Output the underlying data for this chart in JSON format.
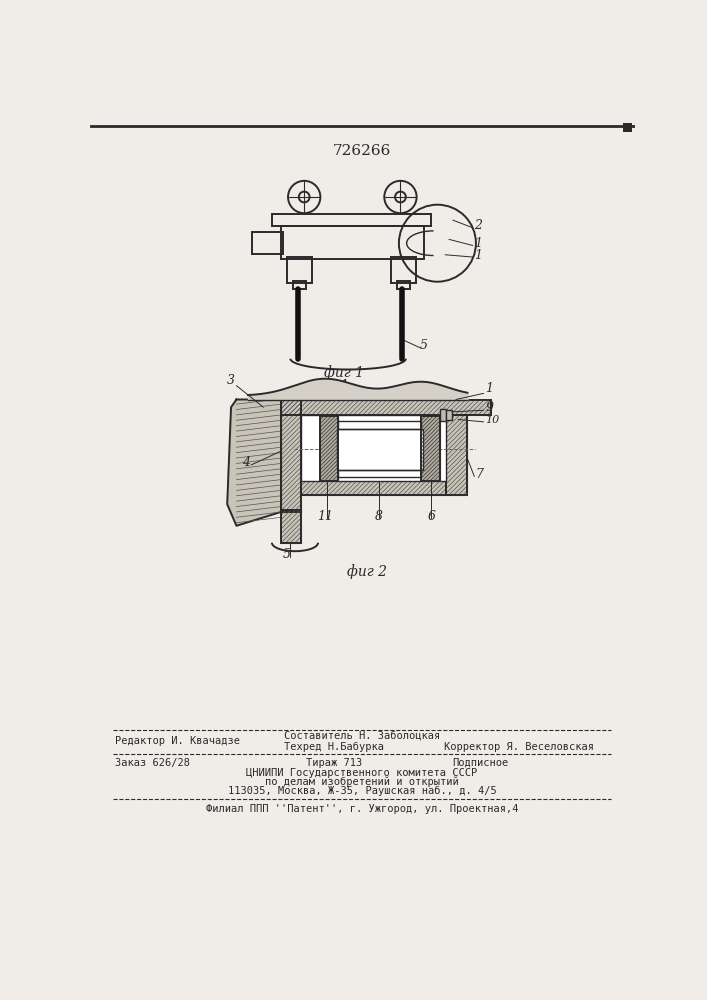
{
  "patent_number": "726266",
  "fig1_caption": "фиг 1",
  "fig2_caption": "фиг 2",
  "section_label": "1",
  "background_color": "#f0ede8",
  "line_color": "#2a2a2a",
  "footer_line1_left": "Редактор И. Квачадзе",
  "footer_line1_center": "Составитель Н. Заболоцкая",
  "footer_line2_center": "Техред Н.Бабурка",
  "footer_line2_right": "Корректор Я. Веселовская",
  "footer_line3_left": "Заказ 626/28",
  "footer_line3_center": "Тираж 713",
  "footer_line3_right": "Подписное",
  "footer_line4": "ЦНИИПИ Государственного комитета СССР",
  "footer_line5": "по делам изобретений и открытий",
  "footer_line6": "113035, Москва, Ж-35, Раушская наб., д. 4/5",
  "footer_line7": "Филиал ППП ''Патент'', г. Ужгород, ул. Проектная,4"
}
